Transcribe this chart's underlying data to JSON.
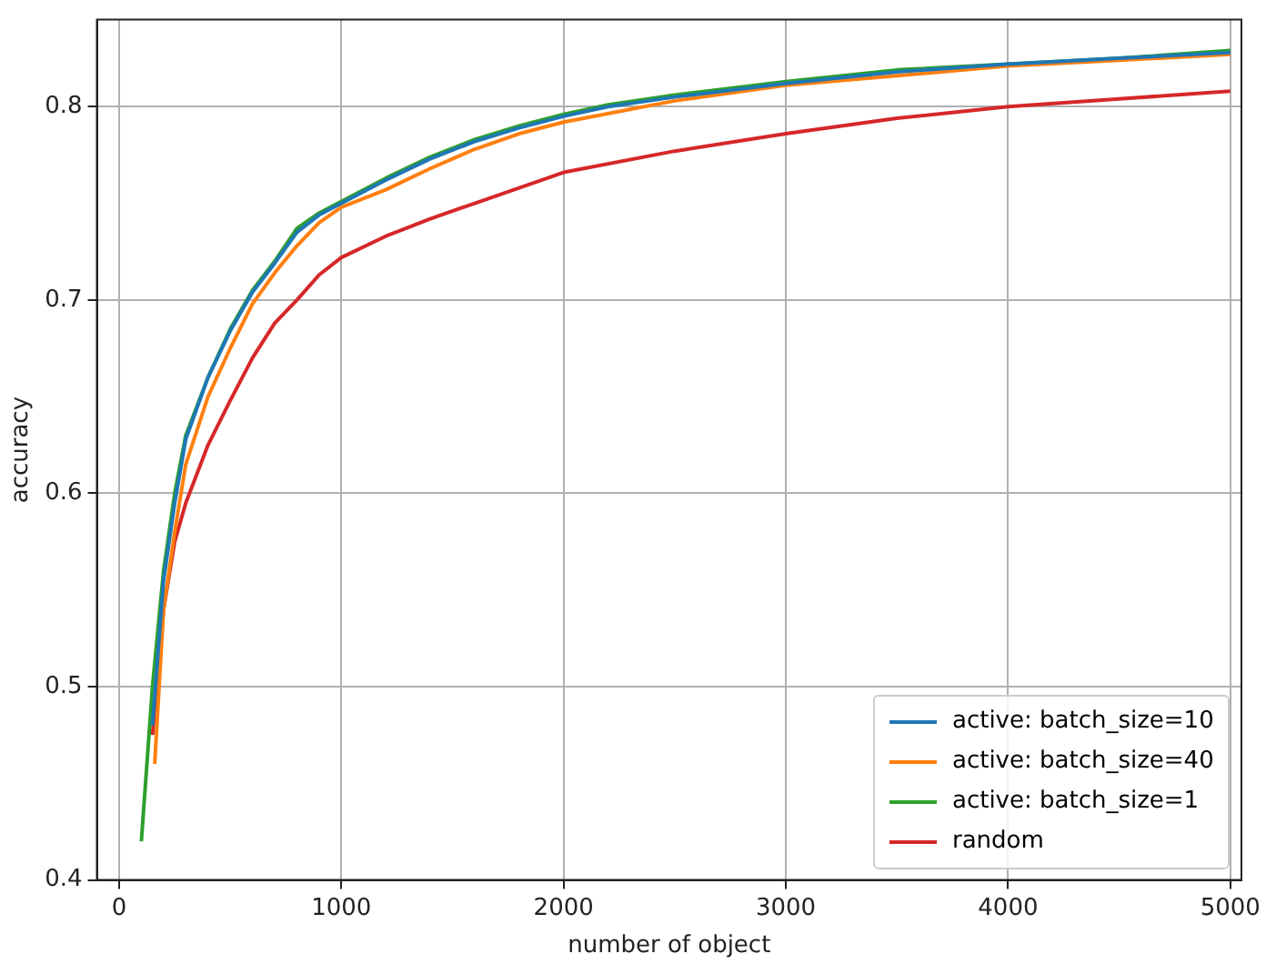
{
  "chart_data": {
    "type": "line",
    "xlabel": "number of object",
    "ylabel": "accuracy",
    "xlim": [
      -100,
      5050
    ],
    "ylim": [
      0.4,
      0.845
    ],
    "xticks": [
      0,
      1000,
      2000,
      3000,
      4000,
      5000
    ],
    "yticks": [
      0.4,
      0.5,
      0.6,
      0.7,
      0.8
    ],
    "grid": true,
    "legend": "bottom right",
    "line_style": "solid",
    "marker": "none",
    "series": [
      {
        "name": "active: batch_size=10",
        "color": "#1f77b4",
        "x": [
          150,
          200,
          250,
          300,
          400,
          500,
          600,
          700,
          800,
          900,
          1000,
          1200,
          1400,
          1600,
          1800,
          2000,
          2200,
          2500,
          3000,
          3500,
          4000,
          4500,
          5000
        ],
        "values": [
          0.48,
          0.555,
          0.595,
          0.628,
          0.66,
          0.684,
          0.704,
          0.719,
          0.735,
          0.744,
          0.75,
          0.762,
          0.773,
          0.782,
          0.789,
          0.795,
          0.8,
          0.805,
          0.812,
          0.818,
          0.822,
          0.825,
          0.828
        ]
      },
      {
        "name": "active: batch_size=40",
        "color": "#ff7f0e",
        "x": [
          160,
          200,
          250,
          300,
          400,
          500,
          600,
          700,
          800,
          900,
          1000,
          1200,
          1400,
          1600,
          1800,
          2000,
          2500,
          3000,
          3500,
          4000,
          4500,
          5000
        ],
        "values": [
          0.46,
          0.54,
          0.58,
          0.615,
          0.65,
          0.675,
          0.698,
          0.714,
          0.728,
          0.74,
          0.748,
          0.757,
          0.768,
          0.778,
          0.786,
          0.792,
          0.803,
          0.811,
          0.816,
          0.821,
          0.824,
          0.827
        ]
      },
      {
        "name": "active: batch_size=1",
        "color": "#2ca02c",
        "x": [
          100,
          150,
          200,
          250,
          300,
          400,
          500,
          600,
          700,
          800,
          900,
          1000,
          1200,
          1400,
          1600,
          1800,
          2000,
          2200,
          2500,
          3000,
          3500,
          4000,
          4500,
          5000
        ],
        "values": [
          0.42,
          0.5,
          0.56,
          0.6,
          0.63,
          0.66,
          0.685,
          0.705,
          0.72,
          0.737,
          0.745,
          0.751,
          0.763,
          0.774,
          0.783,
          0.79,
          0.796,
          0.801,
          0.806,
          0.813,
          0.819,
          0.822,
          0.825,
          0.829
        ]
      },
      {
        "name": "random",
        "color": "#d62728",
        "x": [
          150,
          200,
          250,
          300,
          400,
          500,
          600,
          700,
          800,
          900,
          1000,
          1200,
          1400,
          1600,
          1800,
          2000,
          2500,
          3000,
          3500,
          4000,
          4500,
          5000
        ],
        "values": [
          0.475,
          0.54,
          0.575,
          0.595,
          0.625,
          0.648,
          0.67,
          0.688,
          0.7,
          0.713,
          0.722,
          0.733,
          0.742,
          0.75,
          0.758,
          0.766,
          0.777,
          0.786,
          0.794,
          0.8,
          0.804,
          0.808
        ]
      }
    ]
  }
}
